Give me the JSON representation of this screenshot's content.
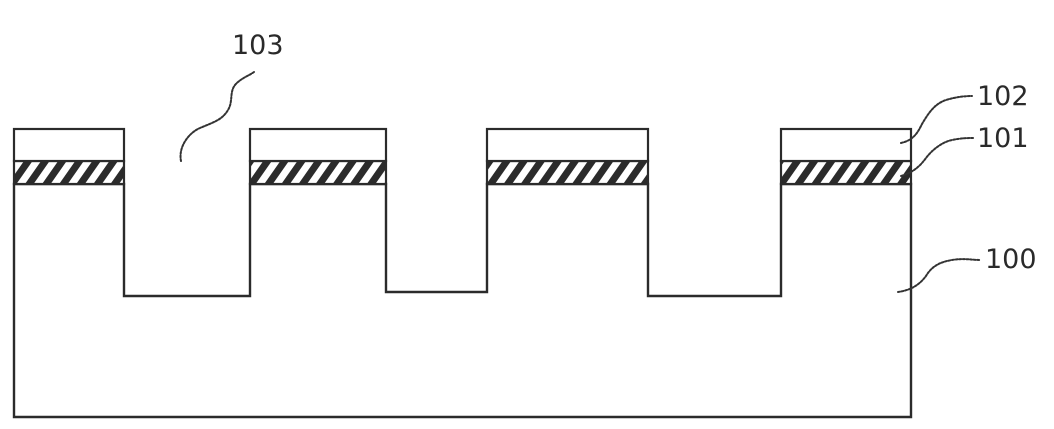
{
  "figure": {
    "labels": {
      "trench": "103",
      "top_layer": "102",
      "hatched_layer": "101",
      "substrate": "100"
    }
  }
}
